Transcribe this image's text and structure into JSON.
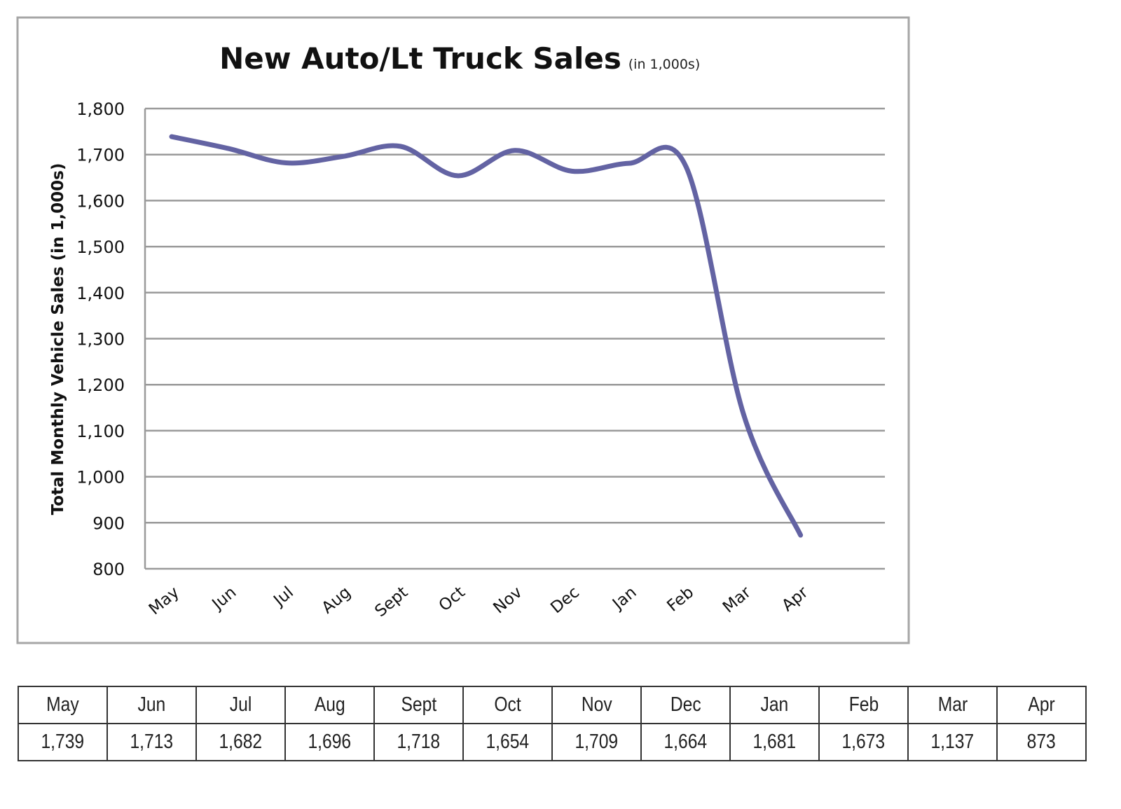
{
  "chart_data": {
    "type": "line",
    "title": "New Auto/Lt Truck Sales",
    "subtitle": "(in 1,000s)",
    "xlabel": "",
    "ylabel": "Total Monthly Vehicle Sales (in 1,000s)",
    "categories": [
      "May",
      "Jun",
      "Jul",
      "Aug",
      "Sept",
      "Oct",
      "Nov",
      "Dec",
      "Jan",
      "Feb",
      "Mar",
      "Apr"
    ],
    "series": [
      {
        "name": "Sales",
        "values": [
          1739,
          1713,
          1682,
          1696,
          1718,
          1654,
          1709,
          1664,
          1681,
          1673,
          1137,
          873
        ]
      }
    ],
    "ylim": [
      800,
      1800
    ],
    "yticks": [
      "800",
      "900",
      "1,000",
      "1,100",
      "1,200",
      "1,300",
      "1,400",
      "1,500",
      "1,600",
      "1,700",
      "1,800"
    ],
    "grid": true,
    "line_color": "#6363a3"
  },
  "table": {
    "headers": [
      "May",
      "Jun",
      "Jul",
      "Aug",
      "Sept",
      "Oct",
      "Nov",
      "Dec",
      "Jan",
      "Feb",
      "Mar",
      "Apr"
    ],
    "values": [
      "1,739",
      "1,713",
      "1,682",
      "1,696",
      "1,718",
      "1,654",
      "1,709",
      "1,664",
      "1,681",
      "1,673",
      "1,137",
      "873"
    ]
  }
}
